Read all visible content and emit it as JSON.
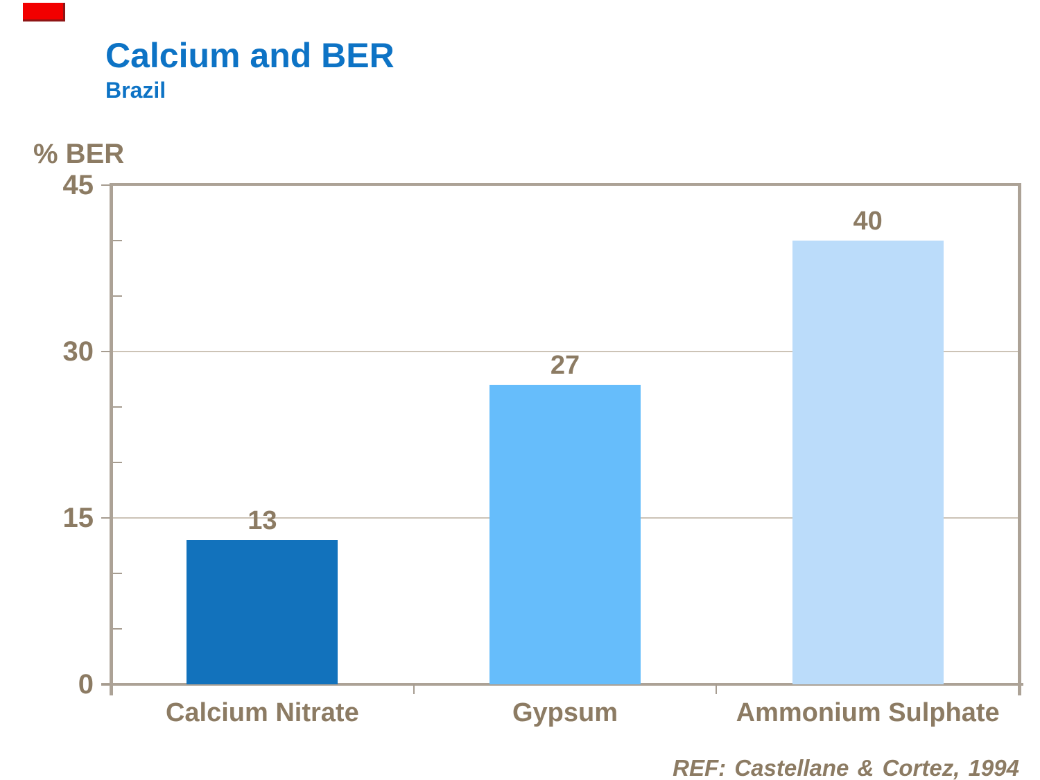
{
  "page": {
    "title": "Calcium and BER",
    "subtitle": "Brazil",
    "reference": "REF: Castellane & Cortez, 1994"
  },
  "colors": {
    "title_blue": "#0d73c5",
    "text_brown": "#8c7b63",
    "axis_tan": "#aca296",
    "gridline_tan": "#ccc3b6",
    "accent_red": "#f20000",
    "bar_colors": [
      "#1272bc",
      "#66bdfb",
      "#bbdcfa"
    ]
  },
  "chart_data": {
    "type": "bar",
    "title": "Calcium and BER",
    "subtitle": "Brazil",
    "xlabel": "",
    "ylabel": "% BER",
    "categories": [
      "Calcium Nitrate",
      "Gypsum",
      "Ammonium Sulphate"
    ],
    "values": [
      13,
      27,
      40
    ],
    "ylim": [
      0,
      45
    ],
    "yticks": [
      0,
      15,
      30,
      45
    ],
    "minor_tick_step": 5,
    "grid": "horizontal-major",
    "legend": "none",
    "bar_colors": [
      "#1272bc",
      "#66bdfb",
      "#bbdcfa"
    ],
    "annotation": "REF: Castellane & Cortez, 1994"
  }
}
